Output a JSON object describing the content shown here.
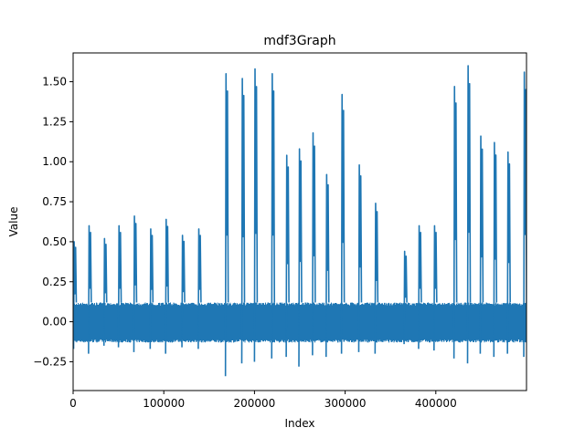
{
  "chart_data": {
    "type": "line",
    "title": "mdf3Graph",
    "xlabel": "Index",
    "ylabel": "Value",
    "xlim": [
      0,
      500000
    ],
    "ylim": [
      -0.43,
      1.68
    ],
    "x_ticks": [
      0,
      100000,
      200000,
      300000,
      400000
    ],
    "x_tick_labels": [
      "0",
      "100000",
      "200000",
      "300000",
      "400000"
    ],
    "y_ticks": [
      -0.25,
      0.0,
      0.25,
      0.5,
      0.75,
      1.0,
      1.25,
      1.5
    ],
    "y_tick_labels": [
      "−0.25",
      "0.00",
      "0.25",
      "0.50",
      "0.75",
      "1.00",
      "1.25",
      "1.50"
    ],
    "grid": false,
    "series_color": "#1f77b4",
    "noise_band": {
      "low": -0.13,
      "high": 0.12
    },
    "spikes": [
      {
        "x": 500,
        "peak": 0.5,
        "trough": -0.17
      },
      {
        "x": 17000,
        "peak": 0.6,
        "trough": -0.2
      },
      {
        "x": 34000,
        "peak": 0.52,
        "trough": -0.15
      },
      {
        "x": 50000,
        "peak": 0.6,
        "trough": -0.16
      },
      {
        "x": 67000,
        "peak": 0.66,
        "trough": -0.19
      },
      {
        "x": 85000,
        "peak": 0.58,
        "trough": -0.17
      },
      {
        "x": 102000,
        "peak": 0.64,
        "trough": -0.2
      },
      {
        "x": 120000,
        "peak": 0.54,
        "trough": -0.16
      },
      {
        "x": 138000,
        "peak": 0.58,
        "trough": -0.17
      },
      {
        "x": 168000,
        "peak": 1.55,
        "trough": -0.34
      },
      {
        "x": 186000,
        "peak": 1.52,
        "trough": -0.26
      },
      {
        "x": 200000,
        "peak": 1.58,
        "trough": -0.25
      },
      {
        "x": 219000,
        "peak": 1.55,
        "trough": -0.23
      },
      {
        "x": 235000,
        "peak": 1.04,
        "trough": -0.22
      },
      {
        "x": 249000,
        "peak": 1.08,
        "trough": -0.28
      },
      {
        "x": 264000,
        "peak": 1.18,
        "trough": -0.21
      },
      {
        "x": 279000,
        "peak": 0.92,
        "trough": -0.22
      },
      {
        "x": 296000,
        "peak": 1.42,
        "trough": -0.2
      },
      {
        "x": 315000,
        "peak": 0.98,
        "trough": -0.19
      },
      {
        "x": 333000,
        "peak": 0.74,
        "trough": -0.2
      },
      {
        "x": 365000,
        "peak": 0.44,
        "trough": -0.14
      },
      {
        "x": 381000,
        "peak": 0.6,
        "trough": -0.17
      },
      {
        "x": 398000,
        "peak": 0.6,
        "trough": -0.18
      },
      {
        "x": 420000,
        "peak": 1.47,
        "trough": -0.23
      },
      {
        "x": 435000,
        "peak": 1.6,
        "trough": -0.26
      },
      {
        "x": 449000,
        "peak": 1.16,
        "trough": -0.2
      },
      {
        "x": 464000,
        "peak": 1.12,
        "trough": -0.22
      },
      {
        "x": 479000,
        "peak": 1.06,
        "trough": -0.2
      },
      {
        "x": 497000,
        "peak": 1.56,
        "trough": -0.22
      }
    ]
  }
}
